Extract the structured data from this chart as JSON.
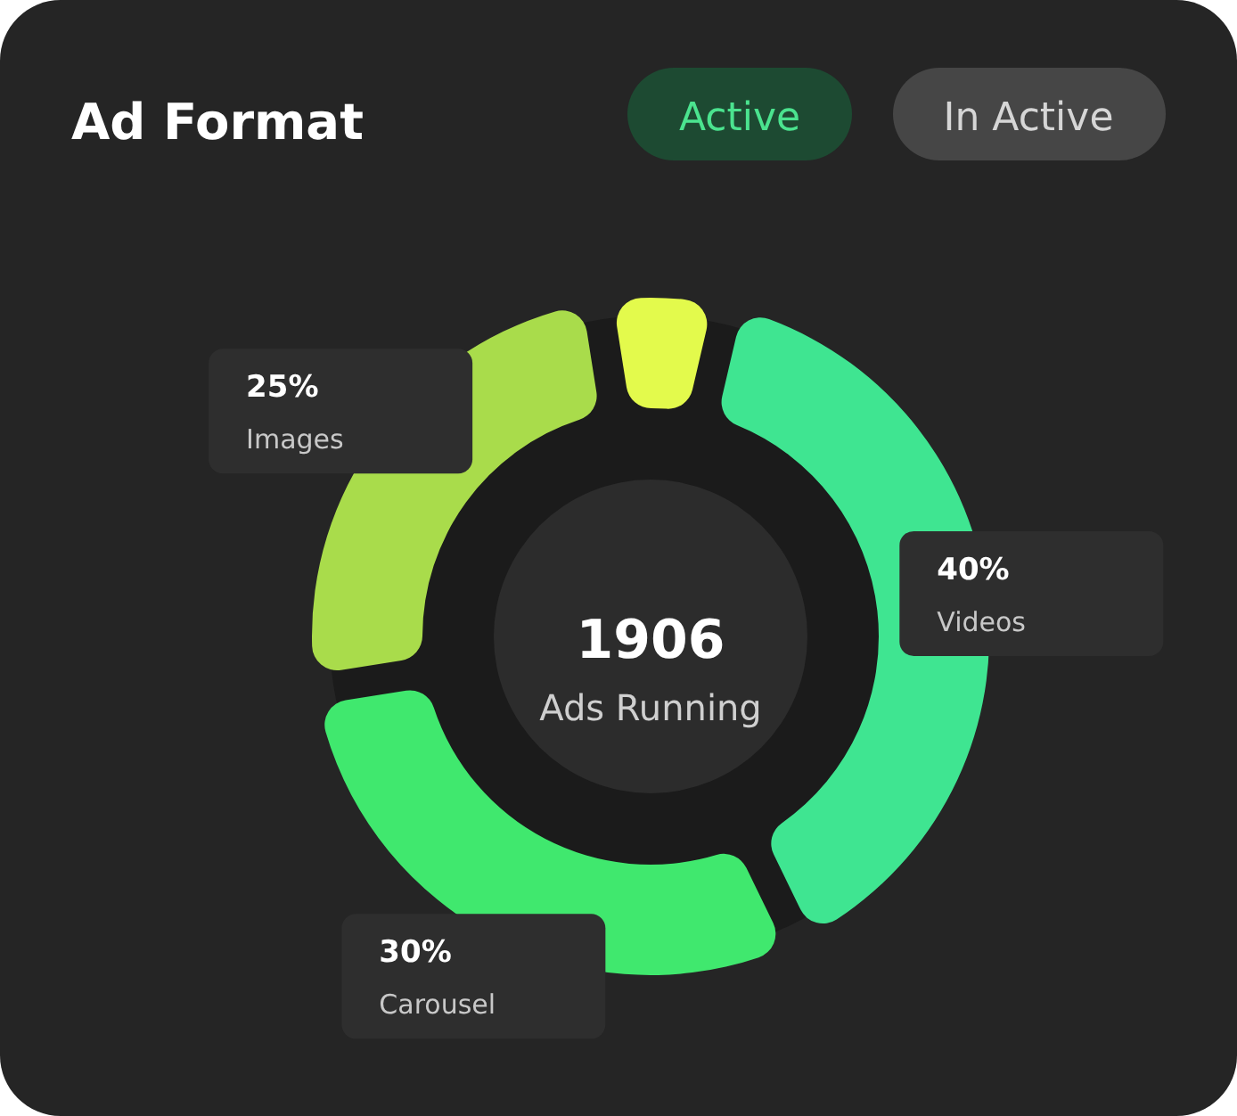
{
  "chart_data": {
    "type": "donut",
    "title": "Ad Format",
    "categories": [
      null,
      "Videos",
      "Carousel",
      "Images"
    ],
    "values": [
      5,
      40,
      30,
      25
    ],
    "colors": [
      "#e3fa4c",
      "#3fe591",
      "#40e86e",
      "#a9dc4b"
    ],
    "value_labels": [
      null,
      "40%",
      "30%",
      "25%"
    ],
    "annotations": [
      "Active",
      "In Active",
      "1906",
      "Ads Running"
    ]
  }
}
